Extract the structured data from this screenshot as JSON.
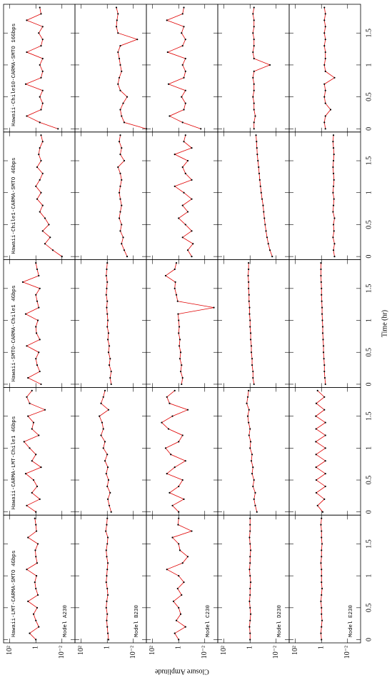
{
  "chart_data": {
    "type": "scatter",
    "x_label": "Time (hr)",
    "y_label": "Closure Amplitude",
    "log_y": true,
    "model_color": "#e00000",
    "point_color": "#000000",
    "xlim": [
      -0.05,
      1.95
    ],
    "xticks": [
      0,
      0.5,
      1,
      1.5
    ],
    "ylim": [
      0.001,
      300
    ],
    "yticks": [
      {
        "value": 100,
        "label": "10²"
      },
      1,
      {
        "value": 0.01,
        "label": "10⁻²"
      }
    ],
    "models": [
      "Model A230",
      "Model B230",
      "Model C230",
      "Model D230",
      "Model E230"
    ],
    "x": [
      0,
      0.1,
      0.2,
      0.3,
      0.4,
      0.5,
      0.6,
      0.7,
      0.8,
      0.9,
      1,
      1.1,
      1.2,
      1.3,
      1.4,
      1.5,
      1.6,
      1.7,
      1.8,
      1.9
    ],
    "panels": [
      {
        "title": "Hawaii-LMT-CARMA-SMTO 4Gbps",
        "values": [
          [
            1,
            3,
            0.6,
            1,
            1.5,
            0.8,
            4,
            0.7,
            1,
            1.2,
            0.9,
            5,
            0.8,
            1,
            1.1,
            0.7,
            4,
            0.9,
            1,
            1.2
          ],
          [
            0.8,
            0.9,
            1,
            1.1,
            1,
            1.2,
            1.1,
            0.9,
            1,
            1.2,
            1.1,
            1,
            0.9,
            1.1,
            1.2,
            1,
            0.9,
            1.3,
            1.1,
            1
          ],
          [
            1,
            2,
            0.3,
            1.5,
            0.7,
            1,
            2.5,
            0.6,
            1.2,
            0.4,
            1,
            8,
            0.5,
            0.2,
            0.8,
            1,
            3,
            0.1,
            1.1,
            1
          ],
          [
            1,
            1,
            1.1,
            1,
            0.9,
            1,
            1.1,
            1,
            1,
            0.9,
            1,
            1.1,
            1,
            1,
            0.9,
            1,
            1.1,
            1,
            1,
            1
          ],
          [
            1,
            1.1,
            1,
            0.9,
            1,
            1,
            1.1,
            1,
            0.9,
            1,
            1,
            1,
            1.1,
            1,
            1,
            0.9,
            1,
            1,
            1.1,
            1
          ]
        ]
      },
      {
        "title": "Hawaii-CARMA-LMT-Chile1 4Gbps",
        "values": [
          [
            1,
            5,
            0.5,
            2,
            0.8,
            1.5,
            6,
            0.4,
            2,
            1,
            3,
            8,
            0.6,
            2,
            1.5,
            4,
            0.2,
            3,
            5,
            2
          ],
          [
            0.5,
            0.7,
            0.9,
            0.6,
            1,
            0.8,
            1.2,
            0.9,
            1.5,
            1,
            2,
            1.5,
            3,
            2,
            2.5,
            4,
            0.8,
            3,
            2,
            1.5
          ],
          [
            1,
            3,
            0.4,
            5,
            1,
            0.5,
            8,
            2,
            0.3,
            4,
            10,
            1,
            0.5,
            6,
            20,
            3,
            0.2,
            5,
            8,
            2
          ],
          [
            0.3,
            0.4,
            0.5,
            0.4,
            0.6,
            0.5,
            0.7,
            0.6,
            0.8,
            0.7,
            1,
            0.9,
            1.2,
            1,
            1.3,
            1.5,
            1.2,
            1.8,
            1.5,
            1.3
          ],
          [
            0.8,
            2,
            0.6,
            2.5,
            0.5,
            2.5,
            0.5,
            2.6,
            0.5,
            2.6,
            0.5,
            2.7,
            0.5,
            2.6,
            0.5,
            2.7,
            0.6,
            2.5,
            0.6,
            2
          ]
        ]
      },
      {
        "title": "Hawaii-SMTO-CARMA-Chile1 4Gbps",
        "values": [
          [
            0.4,
            4,
            0.5,
            0.8,
            1,
            0.6,
            5,
            0.5,
            0.9,
            1,
            0.7,
            6,
            0.6,
            0.8,
            1,
            0.5,
            10,
            0.6,
            0.8,
            1
          ],
          [
            0.5,
            0.6,
            0.5,
            0.7,
            0.6,
            0.8,
            0.7,
            0.9,
            0.8,
            1,
            0.9,
            1,
            1.1,
            1,
            1.2,
            1.1,
            1,
            1.2,
            1.1,
            1
          ],
          [
            0.6,
            0.5,
            0.7,
            0.6,
            0.8,
            0.7,
            0.9,
            0.8,
            1,
            0.9,
            1,
            1.1,
            0.002,
            1.2,
            1.5,
            2,
            1.8,
            10,
            2,
            1.5
          ],
          [
            0.5,
            0.6,
            0.6,
            0.7,
            0.7,
            0.8,
            0.8,
            0.9,
            0.9,
            1,
            1,
            1.1,
            1.1,
            1.2,
            1.2,
            1.3,
            1.3,
            1.4,
            1.3,
            1.3
          ],
          [
            0.5,
            0.55,
            0.6,
            0.6,
            0.65,
            0.7,
            0.7,
            0.75,
            0.8,
            0.8,
            0.85,
            0.9,
            0.9,
            0.95,
            1,
            1,
            1.05,
            1.1,
            1.1,
            1.1
          ]
        ]
      },
      {
        "title": "Hawaii-Chile1-CARMA-SMTO 4Gbps",
        "values": [
          [
            0.01,
            0.05,
            0.2,
            0.08,
            0.3,
            0.1,
            0.2,
            0.5,
            0.3,
            0.8,
            0.4,
            1,
            0.5,
            0.3,
            0.8,
            0.4,
            0.6,
            0.5,
            0.3,
            0.4
          ],
          [
            0.03,
            0.05,
            0.08,
            0.06,
            0.1,
            0.08,
            0.12,
            0.1,
            0.08,
            0.1,
            0.12,
            0.1,
            0.08,
            0.1,
            0.15,
            0.05,
            0.1,
            0.08,
            0.12,
            0.1
          ],
          [
            0.1,
            0.2,
            0.08,
            0.5,
            0.1,
            0.3,
            1,
            0.2,
            0.5,
            0.1,
            0.4,
            2,
            0.1,
            0.3,
            0.5,
            0.2,
            2,
            0.1,
            0.4,
            0.3
          ],
          [
            0.02,
            0.03,
            0.04,
            0.05,
            0.06,
            0.07,
            0.08,
            0.09,
            0.1,
            0.12,
            0.14,
            0.16,
            0.18,
            0.2,
            0.22,
            0.25,
            0.28,
            0.3,
            0.32,
            0.35
          ],
          [
            0.1,
            0.12,
            0.1,
            0.13,
            0.11,
            0.12,
            0.1,
            0.13,
            0.12,
            0.11,
            0.13,
            0.12,
            0.11,
            0.12,
            0.13,
            0.12,
            0.11,
            0.12,
            0.13,
            0.12
          ]
        ]
      },
      {
        "title": "Hawaii-Chile10-CARMA-SMTO 16Gbps",
        "values": [
          [
            0.02,
            0.5,
            5,
            0.4,
            0.3,
            0.5,
            0.3,
            6,
            0.4,
            0.3,
            0.5,
            0.3,
            5,
            0.4,
            0.3,
            0.6,
            0.3,
            5,
            0.4,
            0.5
          ],
          [
            0.001,
            0.05,
            0.08,
            0.1,
            0.06,
            0.03,
            0.1,
            0.15,
            0.12,
            0.08,
            0.1,
            0.12,
            0.15,
            0.1,
            0.005,
            0.15,
            0.2,
            0.18,
            0.15,
            0.2
          ],
          [
            0.02,
            0.5,
            5,
            0.4,
            0.3,
            0.6,
            0.3,
            6,
            0.4,
            0.3,
            0.5,
            0.3,
            7,
            0.5,
            0.3,
            0.6,
            0.4,
            8,
            0.5,
            0.4
          ],
          [
            0.5,
            0.5,
            0.4,
            0.5,
            0.5,
            0.6,
            0.5,
            0.5,
            0.6,
            0.5,
            0.03,
            0.5,
            0.6,
            0.5,
            0.5,
            0.6,
            0.5,
            0.5,
            0.6,
            0.5
          ],
          [
            0.5,
            0.6,
            0.5,
            0.2,
            0.5,
            0.6,
            0.5,
            0.6,
            0.1,
            0.5,
            0.6,
            0.5,
            0.5,
            0.6,
            0.5,
            0.6,
            0.5,
            0.6,
            0.5,
            0.6
          ]
        ]
      }
    ]
  }
}
